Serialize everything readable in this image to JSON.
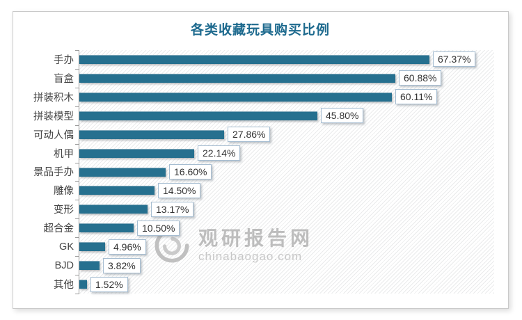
{
  "chart_data": {
    "type": "bar",
    "orientation": "horizontal",
    "title": "各类收藏玩具购买比例",
    "categories": [
      "手办",
      "盲盒",
      "拼装积木",
      "拼装模型",
      "可动人偶",
      "机甲",
      "景品手办",
      "雕像",
      "变形",
      "超合金",
      "GK",
      "BJD",
      "其他"
    ],
    "values": [
      67.37,
      60.88,
      60.11,
      45.8,
      27.86,
      22.14,
      16.6,
      14.5,
      13.17,
      10.5,
      4.96,
      3.82,
      1.52
    ],
    "value_label_format": "percent_2dp",
    "xlabel": "",
    "ylabel": "",
    "xlim": [
      0,
      80
    ],
    "grid": false,
    "legend": "none",
    "data_labels": "boxed labels at bar ends"
  },
  "watermark": {
    "logo": "swirl-logo",
    "name": "观研报告网",
    "url": "chinabaogao.com"
  },
  "colors": {
    "bar": "#26708F",
    "title": "#1E6A8E",
    "value_text": "#333333",
    "category_text": "#454545",
    "box_border": "#A6BDD1",
    "axis": "#9B9B9B",
    "frame_border": "#C9C9C9",
    "watermark": "#B3B3B3",
    "watermark_url": "#BFBFBF"
  }
}
